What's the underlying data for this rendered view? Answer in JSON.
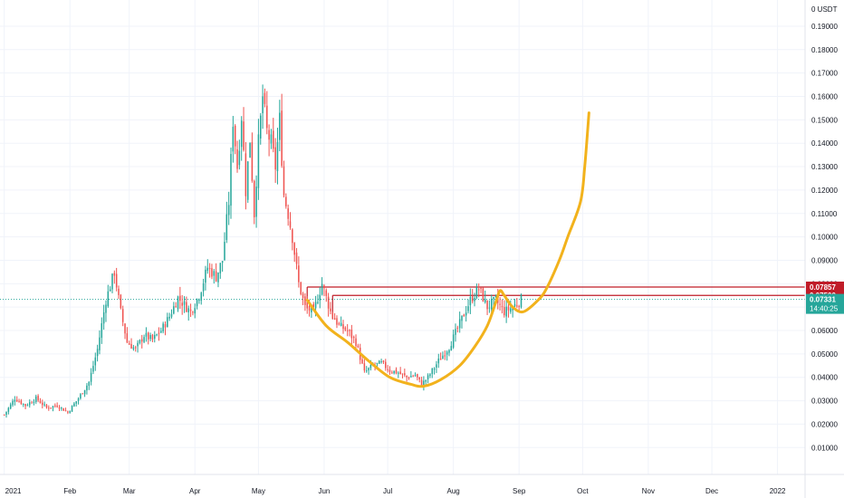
{
  "chart_data": {
    "type": "candlestick",
    "currency_label": "0 USDT",
    "y_ticks": [
      0.01,
      0.02,
      0.03,
      0.04,
      0.05,
      0.06,
      0.07,
      0.08,
      0.09,
      0.1,
      0.11,
      0.12,
      0.13,
      0.14,
      0.15,
      0.16,
      0.17,
      0.18,
      0.19
    ],
    "y_tick_labels": [
      "0.01000",
      "0.02000",
      "0.03000",
      "0.04000",
      "0.05000",
      "0.06000",
      "0.07000",
      "0.08000",
      "0.09000",
      "0.10000",
      "0.11000",
      "0.12000",
      "0.13000",
      "0.14000",
      "0.15000",
      "0.16000",
      "0.17000",
      "0.18000",
      "0.19000"
    ],
    "x_ticks": [
      {
        "label": "2021",
        "day": 0
      },
      {
        "label": "Feb",
        "day": 31
      },
      {
        "label": "Mar",
        "day": 59
      },
      {
        "label": "Apr",
        "day": 90
      },
      {
        "label": "May",
        "day": 120
      },
      {
        "label": "Jun",
        "day": 151
      },
      {
        "label": "Jul",
        "day": 181
      },
      {
        "label": "Aug",
        "day": 212
      },
      {
        "label": "Sep",
        "day": 243
      },
      {
        "label": "Oct",
        "day": 273
      },
      {
        "label": "Nov",
        "day": 304
      },
      {
        "label": "Dec",
        "day": 334
      },
      {
        "label": "2022",
        "day": 365
      }
    ],
    "ylim": [
      -0.0015,
      0.2012
    ],
    "xlim_days": [
      -2,
      378
    ],
    "anchors": [
      [
        0,
        0.024
      ],
      [
        5,
        0.031
      ],
      [
        10,
        0.028
      ],
      [
        15,
        0.031
      ],
      [
        20,
        0.027
      ],
      [
        25,
        0.028
      ],
      [
        30,
        0.025
      ],
      [
        35,
        0.031
      ],
      [
        40,
        0.038
      ],
      [
        44,
        0.052
      ],
      [
        48,
        0.073
      ],
      [
        52,
        0.085
      ],
      [
        55,
        0.068
      ],
      [
        58,
        0.055
      ],
      [
        62,
        0.052
      ],
      [
        66,
        0.058
      ],
      [
        70,
        0.056
      ],
      [
        74,
        0.06
      ],
      [
        78,
        0.066
      ],
      [
        82,
        0.074
      ],
      [
        86,
        0.07
      ],
      [
        88,
        0.068
      ],
      [
        92,
        0.075
      ],
      [
        96,
        0.087
      ],
      [
        100,
        0.083
      ],
      [
        103,
        0.09
      ],
      [
        106,
        0.115
      ],
      [
        108,
        0.15
      ],
      [
        110,
        0.13
      ],
      [
        112,
        0.152
      ],
      [
        114,
        0.12
      ],
      [
        116,
        0.142
      ],
      [
        118,
        0.11
      ],
      [
        120,
        0.14
      ],
      [
        122,
        0.16
      ],
      [
        124,
        0.145
      ],
      [
        126,
        0.14
      ],
      [
        128,
        0.13
      ],
      [
        130,
        0.15
      ],
      [
        132,
        0.118
      ],
      [
        134,
        0.11
      ],
      [
        136,
        0.1
      ],
      [
        139,
        0.08
      ],
      [
        142,
        0.07
      ],
      [
        146,
        0.068
      ],
      [
        150,
        0.08
      ],
      [
        154,
        0.068
      ],
      [
        158,
        0.062
      ],
      [
        162,
        0.06
      ],
      [
        166,
        0.055
      ],
      [
        170,
        0.042
      ],
      [
        174,
        0.045
      ],
      [
        178,
        0.046
      ],
      [
        182,
        0.043
      ],
      [
        186,
        0.042
      ],
      [
        190,
        0.04
      ],
      [
        194,
        0.041
      ],
      [
        197,
        0.037
      ],
      [
        200,
        0.04
      ],
      [
        205,
        0.047
      ],
      [
        210,
        0.053
      ],
      [
        215,
        0.063
      ],
      [
        220,
        0.073
      ],
      [
        224,
        0.078
      ],
      [
        228,
        0.07
      ],
      [
        232,
        0.073
      ],
      [
        236,
        0.068
      ],
      [
        240,
        0.07
      ],
      [
        244,
        0.0733
      ]
    ],
    "last_price": "0.07331",
    "countdown": "14:40:25",
    "resistance_levels": [
      {
        "label": "0.07857",
        "value": 0.07857,
        "from_day": 143
      },
      {
        "label": "0.07500",
        "value": 0.075,
        "from_day": 155
      }
    ],
    "cup_curve": [
      [
        143,
        0.073
      ],
      [
        152,
        0.062
      ],
      [
        162,
        0.055
      ],
      [
        172,
        0.047
      ],
      [
        182,
        0.04
      ],
      [
        192,
        0.037
      ],
      [
        198,
        0.0362
      ],
      [
        206,
        0.039
      ],
      [
        215,
        0.045
      ],
      [
        222,
        0.053
      ],
      [
        228,
        0.062
      ],
      [
        232,
        0.072
      ],
      [
        234,
        0.077
      ],
      [
        236,
        0.075
      ],
      [
        240,
        0.07
      ],
      [
        245,
        0.068
      ],
      [
        252,
        0.073
      ],
      [
        256,
        0.078
      ],
      [
        262,
        0.09
      ],
      [
        266,
        0.1
      ],
      [
        272,
        0.115
      ],
      [
        274,
        0.13
      ],
      [
        276,
        0.153
      ]
    ],
    "colors": {
      "up": "#26a69a",
      "down": "#ef5350",
      "grid": "#f0f3fa",
      "axis_text": "#131722",
      "resistance": "#c01c28",
      "curve": "#f2b21c",
      "last_price_bg": "#26a69a",
      "price_line": "#26a69a"
    }
  }
}
